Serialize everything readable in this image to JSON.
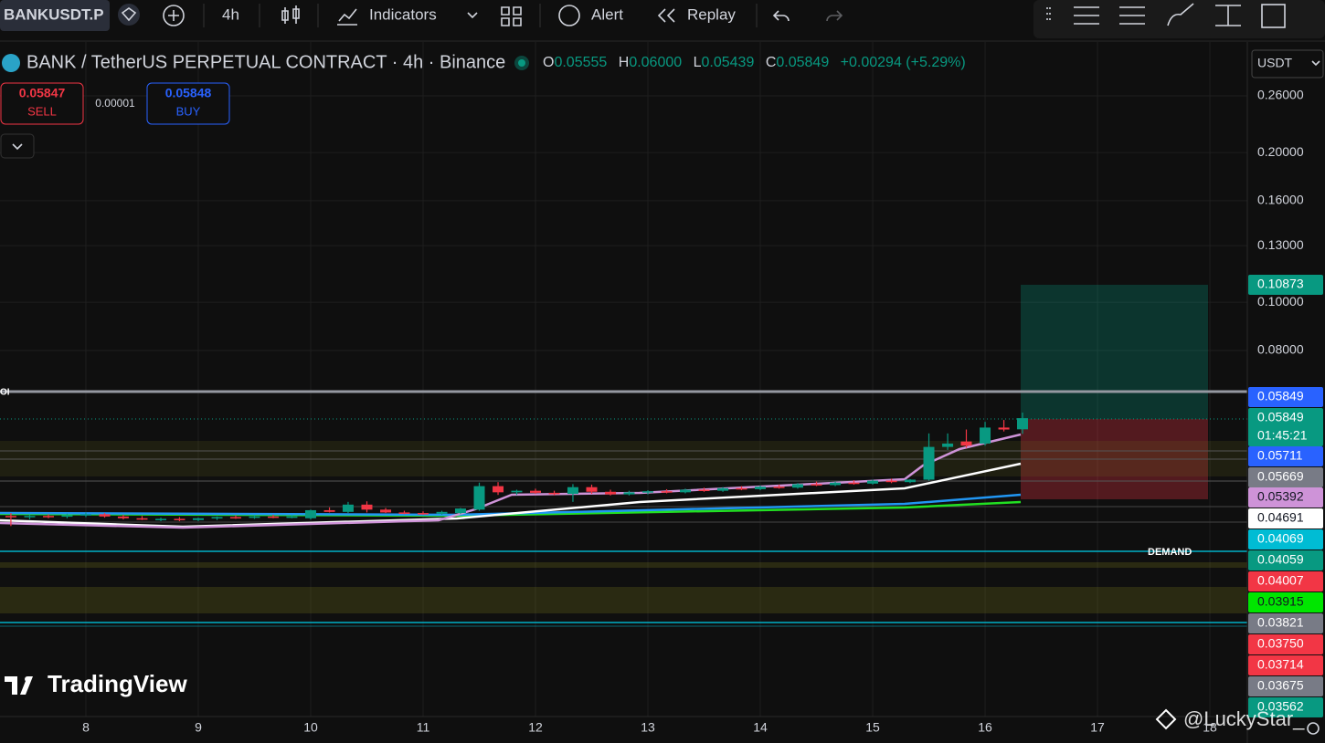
{
  "toolbar": {
    "symbol": "BANKUSDT.P",
    "interval": "4h",
    "indicators": "Indicators",
    "alert": "Alert",
    "replay": "Replay"
  },
  "header": {
    "title": "BANK / TetherUS PERPETUAL CONTRACT · 4h · Binance",
    "o_label": "O",
    "o": "0.05555",
    "h_label": "H",
    "h": "0.06000",
    "l_label": "L",
    "l": "0.05439",
    "c_label": "C",
    "c": "0.05849",
    "change": "+0.00294 (+5.29%)"
  },
  "trade": {
    "sell_price": "0.05847",
    "sell": "SELL",
    "spread": "0.00001",
    "buy_price": "0.05848",
    "buy": "BUY"
  },
  "currency": "USDT",
  "annotations": {
    "oi": "OI",
    "demand": "DEMAND",
    "logo": "TradingView",
    "watermark": "@LuckyStar_"
  },
  "price_tags": [
    {
      "label": "0.10873",
      "color": "#089981",
      "text_color": "#ffffff"
    },
    {
      "label": "0.05849",
      "color": "#2962ff",
      "text_color": "#ffffff"
    },
    {
      "label": "0.05849",
      "color": "#089981",
      "text_color": "#ffffff",
      "timer": "01:45:21"
    },
    {
      "label": "0.05711",
      "color": "#2962ff",
      "text_color": "#ffffff"
    },
    {
      "label": "0.05669",
      "color": "#787b86",
      "text_color": "#ffffff"
    },
    {
      "label": "0.05392",
      "color": "#ce93d8",
      "text_color": "#131722"
    },
    {
      "label": "0.04691",
      "color": "#ffffff",
      "text_color": "#131722"
    },
    {
      "label": "0.04069",
      "color": "#00bcd4",
      "text_color": "#ffffff"
    },
    {
      "label": "0.04059",
      "color": "#089981",
      "text_color": "#ffffff"
    },
    {
      "label": "0.04007",
      "color": "#f23645",
      "text_color": "#ffffff"
    },
    {
      "label": "0.03915",
      "color": "#00e600",
      "text_color": "#131722"
    },
    {
      "label": "0.03821",
      "color": "#787b86",
      "text_color": "#ffffff"
    },
    {
      "label": "0.03750",
      "color": "#f23645",
      "text_color": "#ffffff"
    },
    {
      "label": "0.03714",
      "color": "#f23645",
      "text_color": "#ffffff"
    },
    {
      "label": "0.03675",
      "color": "#787b86",
      "text_color": "#ffffff"
    },
    {
      "label": "0.03562",
      "color": "#089981",
      "text_color": "#ffffff"
    }
  ],
  "chart_data": {
    "type": "candlestick",
    "log_scale": true,
    "grid": true,
    "up_color": "#089981",
    "down_color": "#f23645",
    "ylim": [
      0.0147,
      0.328
    ],
    "yticks": [
      {
        "value": 0.26,
        "label": "0.26000"
      },
      {
        "value": 0.2,
        "label": "0.20000"
      },
      {
        "value": 0.16,
        "label": "0.16000"
      },
      {
        "value": 0.13,
        "label": "0.13000"
      },
      {
        "value": 0.1,
        "label": "0.10000"
      },
      {
        "value": 0.08,
        "label": "0.08000"
      }
    ],
    "xlim": [
      7.236,
      18.333
    ],
    "xticks": [
      8,
      9,
      10,
      11,
      12,
      13,
      14,
      15,
      16,
      17,
      18
    ],
    "x": [
      7.333,
      7.5,
      7.667,
      7.833,
      8,
      8.167,
      8.333,
      8.5,
      8.667,
      8.833,
      9,
      9.167,
      9.333,
      9.5,
      9.667,
      9.833,
      10,
      10.167,
      10.333,
      10.5,
      10.667,
      10.833,
      11,
      11.167,
      11.333,
      11.5,
      11.667,
      11.833,
      12,
      12.167,
      12.333,
      12.5,
      12.667,
      12.833,
      13,
      13.167,
      13.333,
      13.5,
      13.667,
      13.833,
      14,
      14.167,
      14.333,
      14.5,
      14.667,
      14.833,
      15,
      15.167,
      15.333,
      15.5,
      15.667,
      15.833,
      16,
      16.167,
      16.333
    ],
    "open": [
      0.0372,
      0.037,
      0.0372,
      0.0371,
      0.0373,
      0.0375,
      0.0371,
      0.0368,
      0.0366,
      0.0367,
      0.0365,
      0.0368,
      0.037,
      0.0369,
      0.0371,
      0.037,
      0.0368,
      0.0382,
      0.0379,
      0.0392,
      0.0383,
      0.0378,
      0.0377,
      0.0376,
      0.0377,
      0.0383,
      0.0427,
      0.0415,
      0.0418,
      0.0414,
      0.0412,
      0.0425,
      0.0416,
      0.0411,
      0.0415,
      0.0417,
      0.0415,
      0.042,
      0.0418,
      0.0423,
      0.0421,
      0.0426,
      0.0424,
      0.0431,
      0.0429,
      0.0434,
      0.0432,
      0.0438,
      0.0435,
      0.044,
      0.0512,
      0.0525,
      0.052,
      0.056,
      0.05555
    ],
    "high": [
      0.0377,
      0.0374,
      0.0375,
      0.0376,
      0.0378,
      0.0377,
      0.0374,
      0.0372,
      0.0369,
      0.037,
      0.0369,
      0.0371,
      0.0373,
      0.0373,
      0.0374,
      0.0373,
      0.0383,
      0.0387,
      0.0397,
      0.0398,
      0.0386,
      0.0381,
      0.038,
      0.0381,
      0.0386,
      0.0434,
      0.0435,
      0.042,
      0.0422,
      0.0418,
      0.0431,
      0.043,
      0.042,
      0.0418,
      0.0419,
      0.0421,
      0.0422,
      0.0424,
      0.0425,
      0.0427,
      0.0428,
      0.043,
      0.0433,
      0.0436,
      0.0436,
      0.0439,
      0.044,
      0.0442,
      0.0441,
      0.0545,
      0.0545,
      0.0555,
      0.0575,
      0.058,
      0.06
    ],
    "low": [
      0.0355,
      0.0366,
      0.0368,
      0.0368,
      0.037,
      0.0369,
      0.0366,
      0.0365,
      0.0363,
      0.0363,
      0.0363,
      0.0365,
      0.0367,
      0.0367,
      0.0368,
      0.0368,
      0.0366,
      0.0378,
      0.0377,
      0.0378,
      0.0377,
      0.0375,
      0.0374,
      0.0374,
      0.0375,
      0.0381,
      0.041,
      0.041,
      0.0412,
      0.0409,
      0.0397,
      0.0412,
      0.0409,
      0.0409,
      0.0411,
      0.0413,
      0.0413,
      0.0416,
      0.0416,
      0.0419,
      0.0419,
      0.0422,
      0.0422,
      0.0427,
      0.0427,
      0.043,
      0.043,
      0.0433,
      0.0433,
      0.0438,
      0.0505,
      0.051,
      0.0515,
      0.055,
      0.05439
    ],
    "close": [
      0.037,
      0.0372,
      0.0371,
      0.0373,
      0.0375,
      0.0371,
      0.0368,
      0.0366,
      0.0367,
      0.0365,
      0.0368,
      0.037,
      0.0369,
      0.0371,
      0.037,
      0.0371,
      0.0382,
      0.0379,
      0.0392,
      0.0383,
      0.0378,
      0.0377,
      0.0376,
      0.0379,
      0.0385,
      0.0427,
      0.0415,
      0.0418,
      0.0414,
      0.0412,
      0.0425,
      0.0416,
      0.0411,
      0.0415,
      0.0417,
      0.0415,
      0.042,
      0.0418,
      0.0423,
      0.0421,
      0.0426,
      0.0424,
      0.0431,
      0.0429,
      0.0434,
      0.0432,
      0.0438,
      0.0435,
      0.044,
      0.0512,
      0.052,
      0.0515,
      0.056,
      0.0555,
      0.05849
    ]
  }
}
